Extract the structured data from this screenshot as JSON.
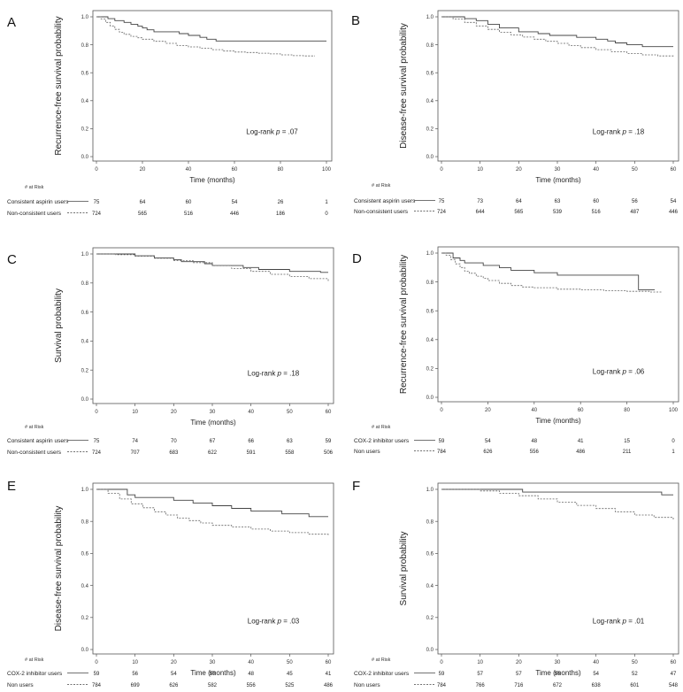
{
  "figure": {
    "risk_header": "# at Risk"
  },
  "chart_data": [
    {
      "panel_label": "A",
      "type": "line",
      "ylabel": "Recurrence-free survival probability",
      "xlabel": "Time (months)",
      "xlim": [
        0,
        100
      ],
      "ylim": [
        0.0,
        1.0
      ],
      "xticks": [
        "0",
        "20",
        "40",
        "60",
        "80",
        "100"
      ],
      "yticks": [
        "0.0",
        "0.2",
        "0.4",
        "0.6",
        "0.8",
        "1.0"
      ],
      "annotation_prefix": "Log-rank ",
      "annotation_p": "p",
      "annotation_value": " = .07",
      "series": [
        {
          "name": "Consistent aspirin users",
          "style": "solid",
          "points": [
            [
              0,
              1.0
            ],
            [
              3,
              1.0
            ],
            [
              5,
              0.987
            ],
            [
              8,
              0.973
            ],
            [
              12,
              0.96
            ],
            [
              15,
              0.947
            ],
            [
              18,
              0.933
            ],
            [
              20,
              0.92
            ],
            [
              22,
              0.907
            ],
            [
              25,
              0.893
            ],
            [
              30,
              0.893
            ],
            [
              36,
              0.88
            ],
            [
              40,
              0.867
            ],
            [
              45,
              0.853
            ],
            [
              48,
              0.84
            ],
            [
              52,
              0.827
            ],
            [
              60,
              0.827
            ],
            [
              75,
              0.827
            ],
            [
              90,
              0.827
            ],
            [
              100,
              0.827
            ]
          ],
          "risk": [
            "75",
            "64",
            "60",
            "54",
            "26",
            "1"
          ]
        },
        {
          "name": "Non-consistent users",
          "style": "dashed",
          "points": [
            [
              0,
              1.0
            ],
            [
              2,
              0.985
            ],
            [
              4,
              0.96
            ],
            [
              6,
              0.935
            ],
            [
              8,
              0.91
            ],
            [
              10,
              0.89
            ],
            [
              12,
              0.875
            ],
            [
              15,
              0.86
            ],
            [
              18,
              0.85
            ],
            [
              20,
              0.84
            ],
            [
              25,
              0.825
            ],
            [
              30,
              0.81
            ],
            [
              35,
              0.795
            ],
            [
              40,
              0.785
            ],
            [
              45,
              0.775
            ],
            [
              50,
              0.765
            ],
            [
              55,
              0.755
            ],
            [
              60,
              0.748
            ],
            [
              65,
              0.745
            ],
            [
              70,
              0.74
            ],
            [
              75,
              0.735
            ],
            [
              80,
              0.728
            ],
            [
              85,
              0.722
            ],
            [
              90,
              0.72
            ],
            [
              95,
              0.72
            ]
          ],
          "risk": [
            "724",
            "565",
            "516",
            "446",
            "186",
            "0"
          ]
        }
      ]
    },
    {
      "panel_label": "B",
      "type": "line",
      "ylabel": "Disease-free survival probability",
      "xlabel": "Time (months)",
      "xlim": [
        0,
        60
      ],
      "ylim": [
        0.0,
        1.0
      ],
      "xticks": [
        "0",
        "10",
        "20",
        "30",
        "40",
        "50",
        "60"
      ],
      "yticks": [
        "0.0",
        "0.2",
        "0.4",
        "0.6",
        "0.8",
        "1.0"
      ],
      "annotation_prefix": "Log-rank ",
      "annotation_p": "p",
      "annotation_value": " = .18",
      "series": [
        {
          "name": "Consistent aspirin users",
          "style": "solid",
          "points": [
            [
              0,
              1.0
            ],
            [
              4,
              1.0
            ],
            [
              6,
              0.987
            ],
            [
              9,
              0.973
            ],
            [
              12,
              0.947
            ],
            [
              15,
              0.92
            ],
            [
              20,
              0.893
            ],
            [
              25,
              0.88
            ],
            [
              28,
              0.867
            ],
            [
              35,
              0.853
            ],
            [
              40,
              0.84
            ],
            [
              43,
              0.827
            ],
            [
              45,
              0.813
            ],
            [
              48,
              0.8
            ],
            [
              52,
              0.787
            ],
            [
              55,
              0.787
            ],
            [
              60,
              0.787
            ]
          ],
          "risk": [
            "75",
            "73",
            "64",
            "63",
            "60",
            "56",
            "54"
          ]
        },
        {
          "name": "Non-consistent users",
          "style": "dashed",
          "points": [
            [
              0,
              1.0
            ],
            [
              3,
              0.985
            ],
            [
              6,
              0.96
            ],
            [
              9,
              0.935
            ],
            [
              12,
              0.91
            ],
            [
              15,
              0.89
            ],
            [
              18,
              0.87
            ],
            [
              21,
              0.855
            ],
            [
              24,
              0.84
            ],
            [
              27,
              0.825
            ],
            [
              30,
              0.81
            ],
            [
              33,
              0.795
            ],
            [
              36,
              0.78
            ],
            [
              40,
              0.765
            ],
            [
              44,
              0.75
            ],
            [
              48,
              0.738
            ],
            [
              52,
              0.728
            ],
            [
              56,
              0.72
            ],
            [
              60,
              0.71
            ]
          ],
          "risk": [
            "724",
            "644",
            "565",
            "539",
            "516",
            "487",
            "446"
          ]
        }
      ]
    },
    {
      "panel_label": "C",
      "type": "line",
      "ylabel": "Survival probability",
      "xlabel": "Time (months)",
      "xlim": [
        0,
        60
      ],
      "ylim": [
        0.0,
        1.0
      ],
      "xticks": [
        "0",
        "10",
        "20",
        "30",
        "40",
        "50",
        "60"
      ],
      "yticks": [
        "0.0",
        "0.2",
        "0.4",
        "0.6",
        "0.8",
        "1.0"
      ],
      "annotation_prefix": "Log-rank ",
      "annotation_p": "p",
      "annotation_value": " = .18",
      "series": [
        {
          "name": "Consistent aspirin users",
          "style": "solid",
          "points": [
            [
              0,
              1.0
            ],
            [
              8,
              1.0
            ],
            [
              10,
              0.987
            ],
            [
              15,
              0.973
            ],
            [
              20,
              0.96
            ],
            [
              22,
              0.947
            ],
            [
              28,
              0.933
            ],
            [
              30,
              0.92
            ],
            [
              38,
              0.907
            ],
            [
              42,
              0.893
            ],
            [
              50,
              0.88
            ],
            [
              55,
              0.88
            ],
            [
              58,
              0.873
            ],
            [
              60,
              0.873
            ]
          ],
          "risk": [
            "75",
            "74",
            "70",
            "67",
            "66",
            "63",
            "59"
          ]
        },
        {
          "name": "Non-consistent users",
          "style": "dashed",
          "points": [
            [
              0,
              1.0
            ],
            [
              5,
              0.995
            ],
            [
              10,
              0.985
            ],
            [
              15,
              0.97
            ],
            [
              20,
              0.955
            ],
            [
              25,
              0.94
            ],
            [
              30,
              0.92
            ],
            [
              35,
              0.9
            ],
            [
              40,
              0.88
            ],
            [
              45,
              0.86
            ],
            [
              50,
              0.845
            ],
            [
              55,
              0.83
            ],
            [
              60,
              0.81
            ]
          ],
          "risk": [
            "724",
            "707",
            "683",
            "622",
            "591",
            "558",
            "506"
          ]
        }
      ]
    },
    {
      "panel_label": "D",
      "type": "line",
      "ylabel": "Recurrence-free survival probability",
      "xlabel": "Time (months)",
      "xlim": [
        0,
        100
      ],
      "ylim": [
        0.0,
        1.0
      ],
      "xticks": [
        "0",
        "20",
        "40",
        "60",
        "80",
        "100"
      ],
      "yticks": [
        "0.0",
        "0.2",
        "0.4",
        "0.6",
        "0.8",
        "1.0"
      ],
      "annotation_prefix": "Log-rank ",
      "annotation_p": "p",
      "annotation_value": " = .06",
      "series": [
        {
          "name": "COX-2 inhibitor users",
          "style": "solid",
          "points": [
            [
              0,
              1.0
            ],
            [
              3,
              1.0
            ],
            [
              5,
              0.966
            ],
            [
              8,
              0.949
            ],
            [
              10,
              0.932
            ],
            [
              18,
              0.915
            ],
            [
              25,
              0.898
            ],
            [
              30,
              0.881
            ],
            [
              40,
              0.864
            ],
            [
              50,
              0.847
            ],
            [
              84,
              0.847
            ],
            [
              85,
              0.746
            ],
            [
              92,
              0.746
            ]
          ],
          "risk": [
            "59",
            "54",
            "48",
            "41",
            "15",
            "0"
          ]
        },
        {
          "name": "Non users",
          "style": "dashed",
          "points": [
            [
              0,
              1.0
            ],
            [
              2,
              0.985
            ],
            [
              4,
              0.955
            ],
            [
              6,
              0.925
            ],
            [
              8,
              0.9
            ],
            [
              10,
              0.875
            ],
            [
              12,
              0.86
            ],
            [
              15,
              0.84
            ],
            [
              18,
              0.825
            ],
            [
              20,
              0.81
            ],
            [
              25,
              0.79
            ],
            [
              30,
              0.775
            ],
            [
              35,
              0.765
            ],
            [
              40,
              0.76
            ],
            [
              50,
              0.75
            ],
            [
              60,
              0.745
            ],
            [
              70,
              0.74
            ],
            [
              80,
              0.735
            ],
            [
              90,
              0.73
            ],
            [
              95,
              0.73
            ]
          ],
          "risk": [
            "784",
            "626",
            "556",
            "486",
            "211",
            "1"
          ]
        }
      ]
    },
    {
      "panel_label": "E",
      "type": "line",
      "ylabel": "Disease-free survival probability",
      "xlabel": "Time (months)",
      "xlim": [
        0,
        60
      ],
      "ylim": [
        0.0,
        1.0
      ],
      "xticks": [
        "0",
        "10",
        "20",
        "30",
        "40",
        "50",
        "60"
      ],
      "yticks": [
        "0.0",
        "0.2",
        "0.4",
        "0.6",
        "0.8",
        "1.0"
      ],
      "annotation_prefix": "Log-rank ",
      "annotation_p": "p",
      "annotation_value": " = .03",
      "series": [
        {
          "name": "COX-2 inhibitor users",
          "style": "solid",
          "points": [
            [
              0,
              1.0
            ],
            [
              5,
              1.0
            ],
            [
              8,
              0.966
            ],
            [
              10,
              0.949
            ],
            [
              20,
              0.932
            ],
            [
              25,
              0.915
            ],
            [
              30,
              0.898
            ],
            [
              35,
              0.881
            ],
            [
              40,
              0.864
            ],
            [
              48,
              0.847
            ],
            [
              52,
              0.847
            ],
            [
              55,
              0.83
            ],
            [
              57,
              0.83
            ],
            [
              60,
              0.83
            ]
          ],
          "risk": [
            "59",
            "56",
            "54",
            "50",
            "48",
            "45",
            "41"
          ]
        },
        {
          "name": "Non users",
          "style": "dashed",
          "points": [
            [
              0,
              1.0
            ],
            [
              3,
              0.975
            ],
            [
              6,
              0.94
            ],
            [
              9,
              0.91
            ],
            [
              12,
              0.885
            ],
            [
              15,
              0.86
            ],
            [
              18,
              0.84
            ],
            [
              21,
              0.82
            ],
            [
              24,
              0.805
            ],
            [
              27,
              0.79
            ],
            [
              30,
              0.775
            ],
            [
              35,
              0.765
            ],
            [
              40,
              0.752
            ],
            [
              45,
              0.74
            ],
            [
              50,
              0.73
            ],
            [
              55,
              0.72
            ],
            [
              60,
              0.71
            ]
          ],
          "risk": [
            "784",
            "699",
            "626",
            "582",
            "556",
            "525",
            "486"
          ]
        }
      ]
    },
    {
      "panel_label": "F",
      "type": "line",
      "ylabel": "Survival probability",
      "xlabel": "Time (months)",
      "xlim": [
        0,
        60
      ],
      "ylim": [
        0.0,
        1.0
      ],
      "xticks": [
        "0",
        "10",
        "20",
        "30",
        "40",
        "50",
        "60"
      ],
      "yticks": [
        "0.0",
        "0.2",
        "0.4",
        "0.6",
        "0.8",
        "1.0"
      ],
      "annotation_prefix": "Log-rank ",
      "annotation_p": "p",
      "annotation_value": " = .01",
      "series": [
        {
          "name": "COX-2 inhibitor users",
          "style": "solid",
          "points": [
            [
              0,
              1.0
            ],
            [
              20,
              1.0
            ],
            [
              21,
              0.983
            ],
            [
              55,
              0.983
            ],
            [
              57,
              0.966
            ],
            [
              60,
              0.966
            ]
          ],
          "risk": [
            "59",
            "57",
            "57",
            "56",
            "54",
            "52",
            "47"
          ]
        },
        {
          "name": "Non users",
          "style": "dashed",
          "points": [
            [
              0,
              1.0
            ],
            [
              10,
              0.99
            ],
            [
              15,
              0.975
            ],
            [
              20,
              0.96
            ],
            [
              25,
              0.94
            ],
            [
              30,
              0.92
            ],
            [
              35,
              0.9
            ],
            [
              40,
              0.88
            ],
            [
              45,
              0.86
            ],
            [
              50,
              0.84
            ],
            [
              55,
              0.825
            ],
            [
              60,
              0.805
            ]
          ],
          "risk": [
            "784",
            "766",
            "716",
            "672",
            "638",
            "601",
            "548"
          ]
        }
      ]
    }
  ]
}
